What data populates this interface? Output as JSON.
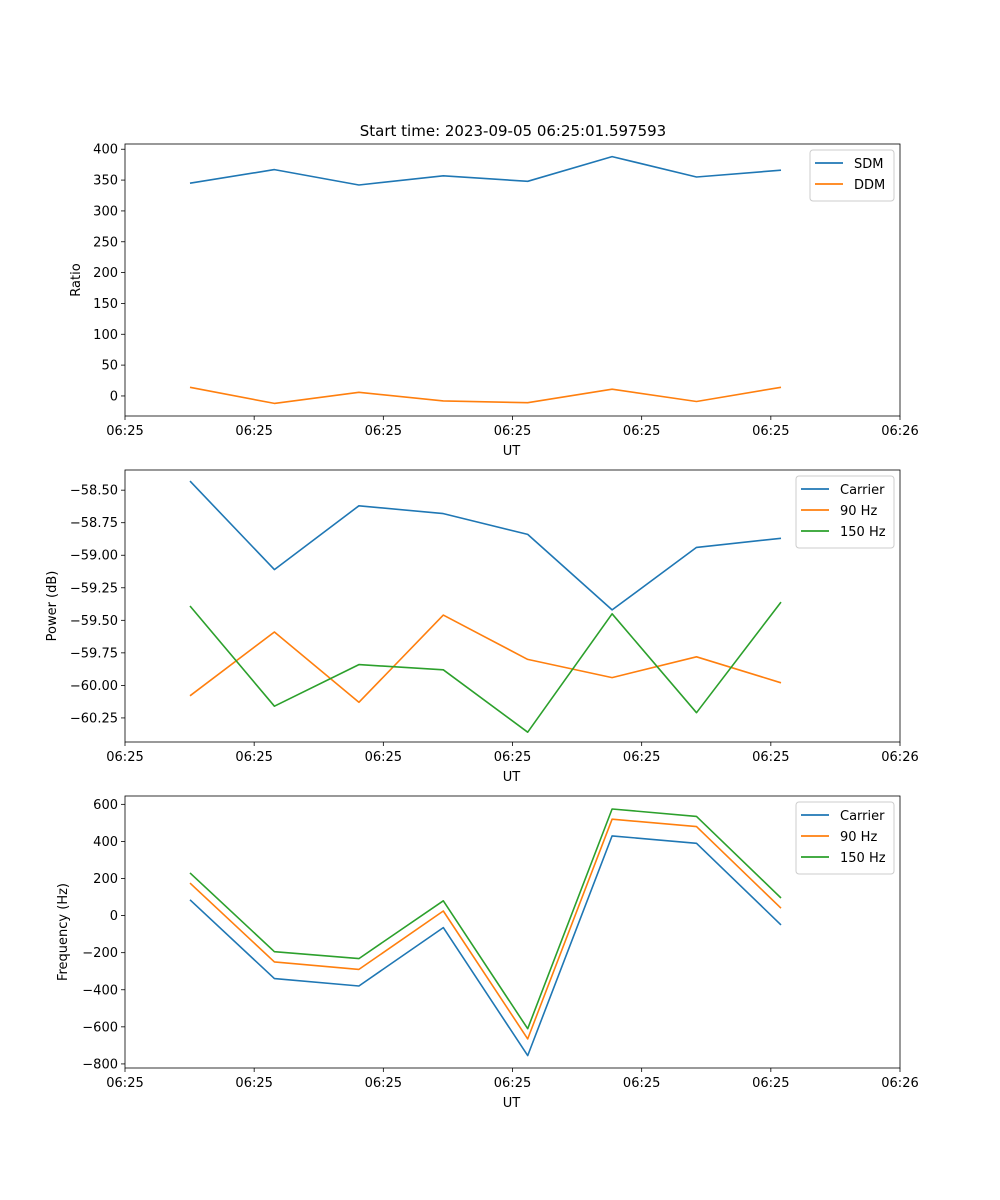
{
  "figure": {
    "title": "Start time: 2023-09-05 06:25:01.597593"
  },
  "chart_data": [
    {
      "type": "line",
      "title": "Start time: 2023-09-05 06:25:01.597593",
      "xlabel": "UT",
      "ylabel": "Ratio",
      "x": [
        1,
        2,
        3,
        4,
        5,
        6,
        7,
        8
      ],
      "xlim": [
        0.23,
        9.41
      ],
      "x_ticks": [
        {
          "v": 0.23,
          "label": "06:25"
        },
        {
          "v": 1.76,
          "label": "06:25"
        },
        {
          "v": 3.29,
          "label": "06:25"
        },
        {
          "v": 4.82,
          "label": "06:25"
        },
        {
          "v": 6.35,
          "label": "06:25"
        },
        {
          "v": 7.88,
          "label": "06:25"
        },
        {
          "v": 9.41,
          "label": "06:26"
        }
      ],
      "ylim": [
        -32.5,
        408.5
      ],
      "y_ticks": [
        {
          "v": 400,
          "label": "400"
        },
        {
          "v": 350,
          "label": "350"
        },
        {
          "v": 300,
          "label": "300"
        },
        {
          "v": 250,
          "label": "250"
        },
        {
          "v": 200,
          "label": "200"
        },
        {
          "v": 150,
          "label": "150"
        },
        {
          "v": 100,
          "label": "100"
        },
        {
          "v": 50,
          "label": "50"
        },
        {
          "v": 0,
          "label": "0"
        }
      ],
      "legend": "top-right",
      "series": [
        {
          "name": "SDM",
          "color": "#1f77b4",
          "values": [
            345,
            367,
            342,
            357,
            348,
            388,
            355,
            366
          ]
        },
        {
          "name": "DDM",
          "color": "#ff7f0e",
          "values": [
            14,
            -12,
            6,
            -8,
            -11,
            11,
            -9,
            14
          ]
        }
      ]
    },
    {
      "type": "line",
      "title": "",
      "xlabel": "UT",
      "ylabel": "Power (dB)",
      "x": [
        1,
        2,
        3,
        4,
        5,
        6,
        7,
        8
      ],
      "xlim": [
        0.23,
        9.41
      ],
      "x_ticks": [
        {
          "v": 0.23,
          "label": "06:25"
        },
        {
          "v": 1.76,
          "label": "06:25"
        },
        {
          "v": 3.29,
          "label": "06:25"
        },
        {
          "v": 4.82,
          "label": "06:25"
        },
        {
          "v": 6.35,
          "label": "06:25"
        },
        {
          "v": 7.88,
          "label": "06:25"
        },
        {
          "v": 9.41,
          "label": "06:26"
        }
      ],
      "ylim": [
        -60.435,
        -58.345
      ],
      "y_ticks": [
        {
          "v": -58.5,
          "label": "−58.50"
        },
        {
          "v": -58.75,
          "label": "−58.75"
        },
        {
          "v": -59.0,
          "label": "−59.00"
        },
        {
          "v": -59.25,
          "label": "−59.25"
        },
        {
          "v": -59.5,
          "label": "−59.50"
        },
        {
          "v": -59.75,
          "label": "−59.75"
        },
        {
          "v": -60.0,
          "label": "−60.00"
        },
        {
          "v": -60.25,
          "label": "−60.25"
        }
      ],
      "legend": "top-right",
      "series": [
        {
          "name": "Carrier",
          "color": "#1f77b4",
          "values": [
            -58.43,
            -59.11,
            -58.62,
            -58.68,
            -58.84,
            -59.42,
            -58.94,
            -58.87
          ]
        },
        {
          "name": "90 Hz",
          "color": "#ff7f0e",
          "values": [
            -60.08,
            -59.59,
            -60.13,
            -59.46,
            -59.8,
            -59.94,
            -59.78,
            -59.98
          ]
        },
        {
          "name": "150 Hz",
          "color": "#2ca02c",
          "values": [
            -59.39,
            -60.16,
            -59.84,
            -59.88,
            -60.36,
            -59.45,
            -60.21,
            -59.36
          ]
        }
      ]
    },
    {
      "type": "line",
      "title": "",
      "xlabel": "UT",
      "ylabel": "Frequency (Hz)",
      "x": [
        1,
        2,
        3,
        4,
        5,
        6,
        7,
        8
      ],
      "xlim": [
        0.23,
        9.41
      ],
      "x_ticks": [
        {
          "v": 0.23,
          "label": "06:25"
        },
        {
          "v": 1.76,
          "label": "06:25"
        },
        {
          "v": 3.29,
          "label": "06:25"
        },
        {
          "v": 4.82,
          "label": "06:25"
        },
        {
          "v": 6.35,
          "label": "06:25"
        },
        {
          "v": 7.88,
          "label": "06:25"
        },
        {
          "v": 9.41,
          "label": "06:26"
        }
      ],
      "ylim": [
        -822,
        645
      ],
      "y_ticks": [
        {
          "v": 600,
          "label": "600"
        },
        {
          "v": 400,
          "label": "400"
        },
        {
          "v": 200,
          "label": "200"
        },
        {
          "v": 0,
          "label": "0"
        },
        {
          "v": -200,
          "label": "−200"
        },
        {
          "v": -400,
          "label": "−400"
        },
        {
          "v": -600,
          "label": "−600"
        },
        {
          "v": -800,
          "label": "−800"
        }
      ],
      "legend": "top-right",
      "series": [
        {
          "name": "Carrier",
          "color": "#1f77b4",
          "values": [
            85,
            -340,
            -380,
            -65,
            -755,
            430,
            390,
            -50
          ]
        },
        {
          "name": "90 Hz",
          "color": "#ff7f0e",
          "values": [
            175,
            -250,
            -290,
            25,
            -665,
            520,
            480,
            40
          ]
        },
        {
          "name": "150 Hz",
          "color": "#2ca02c",
          "values": [
            230,
            -195,
            -232,
            80,
            -610,
            575,
            535,
            95
          ]
        }
      ]
    }
  ]
}
